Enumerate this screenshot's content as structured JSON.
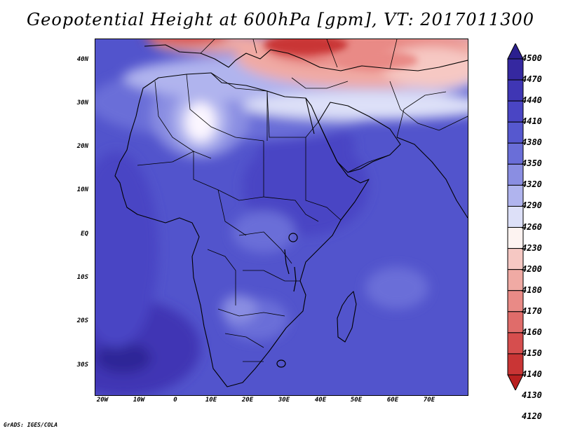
{
  "title": "Geopotential Height at 600hPa [gpm], VT: 2017011300",
  "credit": "GrADS: IGES/COLA",
  "y_axis_labels": [
    "40N",
    "30N",
    "20N",
    "10N",
    "EQ",
    "10S",
    "20S",
    "30S"
  ],
  "x_axis_labels": [
    "20W",
    "10W",
    "0",
    "10E",
    "20E",
    "30E",
    "40E",
    "50E",
    "60E",
    "70E"
  ],
  "colorbar": {
    "levels": [
      "4500",
      "4470",
      "4440",
      "4410",
      "4380",
      "4350",
      "4320",
      "4290",
      "4260",
      "4230",
      "4200",
      "4180",
      "4170",
      "4160",
      "4150",
      "4140",
      "4130",
      "4120"
    ],
    "colors": [
      "#2b1f8f",
      "#3528a0",
      "#3f36b4",
      "#4a45c4",
      "#5658cf",
      "#6a6ed8",
      "#8a8ee2",
      "#b0b4ee",
      "#dde0f8",
      "#fdf3f1",
      "#f6c8c3",
      "#f0aaa4",
      "#e98a86",
      "#e06c6a",
      "#d64e4e",
      "#c93535",
      "#b82020"
    ]
  },
  "map": {
    "region": "Africa",
    "lon_range": [
      -25,
      80
    ],
    "lat_range": [
      -37,
      45
    ],
    "variable": "Geopotential Height at 600hPa",
    "units": "gpm",
    "valid_time": "2017011300"
  }
}
